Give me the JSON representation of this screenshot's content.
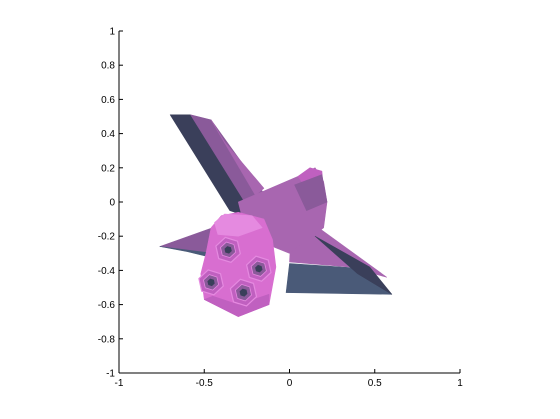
{
  "chart_data": {
    "type": "area",
    "title": "",
    "xlabel": "",
    "ylabel": "",
    "xlim": [
      -1,
      1
    ],
    "ylim": [
      -1,
      1
    ],
    "grid": false,
    "x_ticks": [
      {
        "value": -1,
        "label": "-1"
      },
      {
        "value": -0.5,
        "label": "-0.5"
      },
      {
        "value": 0,
        "label": "0"
      },
      {
        "value": 0.5,
        "label": "0.5"
      },
      {
        "value": 1,
        "label": "1"
      }
    ],
    "y_ticks": [
      {
        "value": 1,
        "label": "1"
      },
      {
        "value": 0.8,
        "label": "0.8"
      },
      {
        "value": 0.6,
        "label": "0.6"
      },
      {
        "value": 0.4,
        "label": "0.4"
      },
      {
        "value": 0.2,
        "label": "0.2"
      },
      {
        "value": 0,
        "label": "0"
      },
      {
        "value": -0.2,
        "label": "-0.2"
      },
      {
        "value": -0.4,
        "label": "-0.4"
      },
      {
        "value": -0.6,
        "label": "-0.6"
      },
      {
        "value": -0.8,
        "label": "-0.8"
      },
      {
        "value": -1,
        "label": "-1"
      }
    ],
    "colors": {
      "pink": "#d86ed0",
      "magenta": "#c060c0",
      "mauve": "#a866b0",
      "purple": "#8a5a9a",
      "slate": "#4a5a78",
      "dark": "#3a3f5a",
      "light_pink": "#e58ae0"
    },
    "patches": [
      {
        "name": "right-wing-underside",
        "color": "slate",
        "points": [
          [
            0.0,
            -0.36
          ],
          [
            0.45,
            -0.39
          ],
          [
            0.6,
            -0.54
          ],
          [
            -0.02,
            -0.53
          ]
        ]
      },
      {
        "name": "right-wing-top",
        "color": "mauve",
        "points": [
          [
            0.02,
            -0.02
          ],
          [
            0.17,
            -0.15
          ],
          [
            0.57,
            -0.44
          ],
          [
            0.35,
            -0.38
          ],
          [
            0.0,
            -0.35
          ]
        ]
      },
      {
        "name": "right-wing-shadow",
        "color": "dark",
        "points": [
          [
            0.15,
            -0.2
          ],
          [
            0.47,
            -0.38
          ],
          [
            0.6,
            -0.54
          ],
          [
            0.4,
            -0.42
          ]
        ]
      },
      {
        "name": "tail-fin-dark",
        "color": "dark",
        "points": [
          [
            -0.7,
            0.51
          ],
          [
            -0.58,
            0.51
          ],
          [
            -0.2,
            -0.1
          ],
          [
            -0.35,
            -0.05
          ]
        ]
      },
      {
        "name": "tail-fin-light",
        "color": "purple",
        "points": [
          [
            -0.58,
            0.51
          ],
          [
            -0.46,
            0.48
          ],
          [
            -0.15,
            0.05
          ],
          [
            -0.2,
            -0.1
          ]
        ]
      },
      {
        "name": "tail-fin-back",
        "color": "mauve",
        "points": [
          [
            -0.46,
            0.48
          ],
          [
            -0.38,
            0.35
          ],
          [
            -0.15,
            0.08
          ],
          [
            -0.2,
            0.04
          ]
        ]
      },
      {
        "name": "fuselage",
        "color": "mauve",
        "points": [
          [
            -0.3,
            0.0
          ],
          [
            0.05,
            0.15
          ],
          [
            0.15,
            0.2
          ],
          [
            0.2,
            0.12
          ],
          [
            0.22,
            0.0
          ],
          [
            0.2,
            -0.15
          ],
          [
            0.0,
            -0.3
          ],
          [
            -0.25,
            -0.2
          ]
        ]
      },
      {
        "name": "nose",
        "color": "magenta",
        "points": [
          [
            0.05,
            0.15
          ],
          [
            0.12,
            0.2
          ],
          [
            0.19,
            0.18
          ],
          [
            0.2,
            0.05
          ],
          [
            0.12,
            0.05
          ]
        ]
      },
      {
        "name": "cockpit-shade",
        "color": "purple",
        "points": [
          [
            0.03,
            0.1
          ],
          [
            0.19,
            0.16
          ],
          [
            0.22,
            0.0
          ],
          [
            0.1,
            -0.05
          ]
        ]
      },
      {
        "name": "left-wing",
        "color": "purple",
        "points": [
          [
            -0.76,
            -0.26
          ],
          [
            -0.45,
            -0.15
          ],
          [
            -0.3,
            -0.2
          ],
          [
            -0.45,
            -0.3
          ]
        ]
      },
      {
        "name": "left-wing-dark",
        "color": "slate",
        "points": [
          [
            -0.76,
            -0.26
          ],
          [
            -0.45,
            -0.3
          ],
          [
            -0.35,
            -0.35
          ],
          [
            -0.6,
            -0.29
          ]
        ]
      },
      {
        "name": "engine-housing",
        "color": "pink",
        "points": [
          [
            -0.46,
            -0.15
          ],
          [
            -0.4,
            -0.08
          ],
          [
            -0.3,
            -0.06
          ],
          [
            -0.15,
            -0.1
          ],
          [
            -0.1,
            -0.22
          ],
          [
            -0.08,
            -0.38
          ],
          [
            -0.12,
            -0.6
          ],
          [
            -0.3,
            -0.67
          ],
          [
            -0.5,
            -0.57
          ],
          [
            -0.52,
            -0.42
          ],
          [
            -0.49,
            -0.3
          ]
        ]
      },
      {
        "name": "engine-top-highlight",
        "color": "light_pink",
        "points": [
          [
            -0.44,
            -0.12
          ],
          [
            -0.38,
            -0.07
          ],
          [
            -0.22,
            -0.08
          ],
          [
            -0.16,
            -0.15
          ],
          [
            -0.3,
            -0.2
          ],
          [
            -0.42,
            -0.19
          ]
        ]
      },
      {
        "name": "engine-bottom-shade",
        "color": "magenta",
        "points": [
          [
            -0.3,
            -0.6
          ],
          [
            -0.12,
            -0.54
          ],
          [
            -0.12,
            -0.6
          ],
          [
            -0.3,
            -0.67
          ],
          [
            -0.5,
            -0.57
          ],
          [
            -0.45,
            -0.55
          ]
        ]
      }
    ],
    "nozzles": [
      {
        "name": "nozzle-upper-left",
        "center": [
          -0.36,
          -0.28
        ],
        "radius": 0.075
      },
      {
        "name": "nozzle-right",
        "center": [
          -0.18,
          -0.39
        ],
        "radius": 0.075
      },
      {
        "name": "nozzle-lower-left",
        "center": [
          -0.46,
          -0.47
        ],
        "radius": 0.075
      },
      {
        "name": "nozzle-bottom",
        "center": [
          -0.27,
          -0.53
        ],
        "radius": 0.08
      }
    ]
  }
}
